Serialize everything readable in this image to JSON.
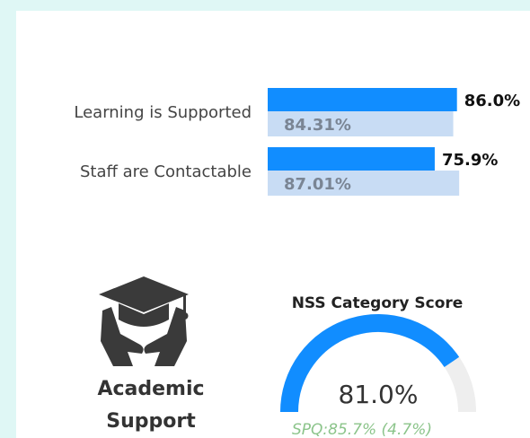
{
  "card_label": [
    "Academic",
    "Support"
  ],
  "chart_data": [
    {
      "type": "hbar",
      "categories": [
        "Learning is Supported",
        "Staff are Contactable"
      ],
      "xlim": [
        0,
        100
      ],
      "series": [
        {
          "color": "#118dff",
          "values": [
            86.0,
            75.9
          ],
          "value_labels": [
            "86.0%",
            "75.9%"
          ]
        },
        {
          "color": "#c8dcf4",
          "values": [
            84.31,
            87.01
          ],
          "value_labels": [
            "84.31%",
            "87.01%"
          ]
        }
      ]
    },
    {
      "type": "gauge",
      "title": "NSS Category Score",
      "value": 81.0,
      "value_label": "81.0%",
      "subtitle": "SPQ:85.7% (4.7%)",
      "ylim": [
        0,
        100
      ],
      "color": "#118dff",
      "track_color": "#eeeeee"
    }
  ]
}
